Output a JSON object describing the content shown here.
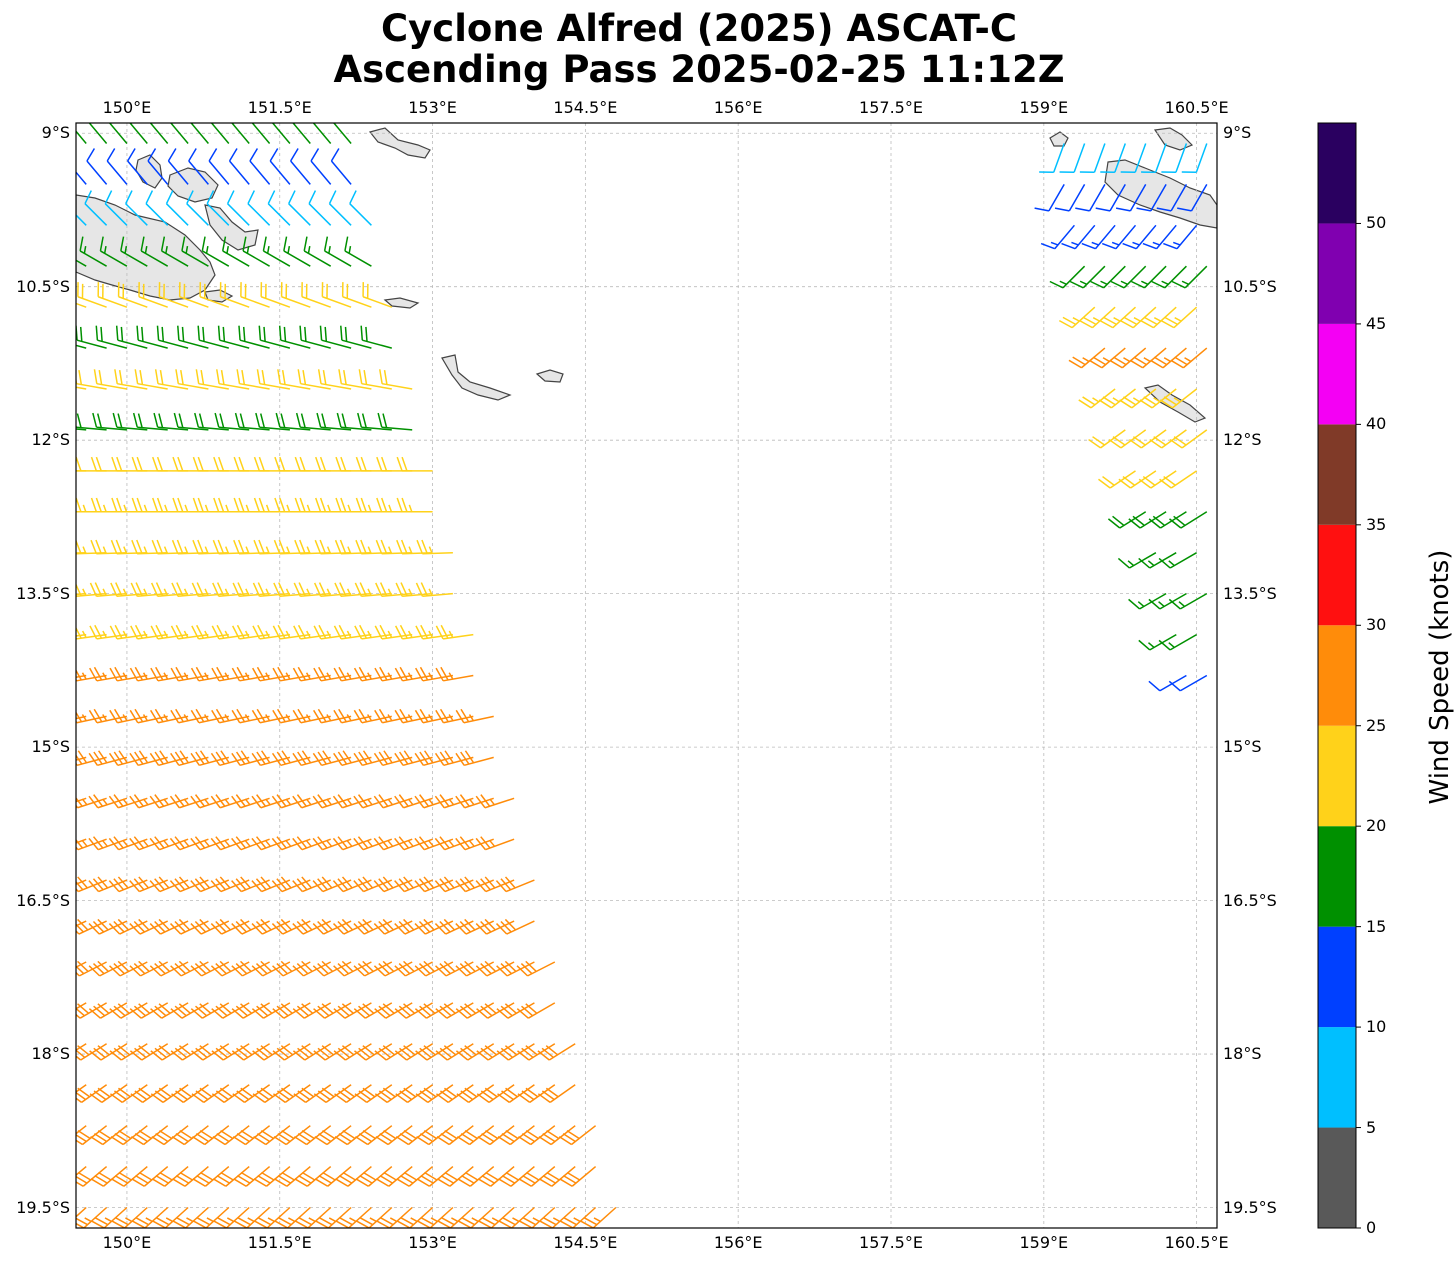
{
  "title": {
    "line1": "Cyclone Alfred (2025) ASCAT-C",
    "line2": "Ascending Pass 2025-02-25 11:12Z"
  },
  "map": {
    "lon_range": [
      149.5,
      160.7
    ],
    "lat_range": [
      -19.7,
      -8.9
    ],
    "lon_ticks": [
      150.0,
      151.5,
      153.0,
      154.5,
      156.0,
      157.5,
      159.0,
      160.5
    ],
    "lon_tick_labels": [
      "150°E",
      "151.5°E",
      "153°E",
      "154.5°E",
      "156°E",
      "157.5°E",
      "159°E",
      "160.5°E"
    ],
    "lat_ticks": [
      -9.0,
      -10.5,
      -12.0,
      -13.5,
      -15.0,
      -16.5,
      -18.0,
      -19.5
    ],
    "lat_tick_labels": [
      "9°S",
      "10.5°S",
      "12°S",
      "13.5°S",
      "15°S",
      "16.5°S",
      "18°S",
      "19.5°S"
    ],
    "grid": true,
    "land_color": "#f0f0f0",
    "coastline_color": "#444444",
    "barb_length_deg": 0.3
  },
  "colorbar": {
    "label": "Wind Speed (knots)",
    "ticks": [
      0,
      5,
      10,
      15,
      20,
      25,
      30,
      35,
      40,
      45,
      50
    ],
    "tick_labels": [
      "0",
      "5",
      "10",
      "15",
      "20",
      "25",
      "30",
      "35",
      "40",
      "45",
      "50"
    ],
    "bins": [
      {
        "min": 0,
        "max": 5,
        "color": "#595959"
      },
      {
        "min": 5,
        "max": 10,
        "color": "#00bfff"
      },
      {
        "min": 10,
        "max": 15,
        "color": "#0040ff"
      },
      {
        "min": 15,
        "max": 20,
        "color": "#009000"
      },
      {
        "min": 20,
        "max": 25,
        "color": "#ffd21a"
      },
      {
        "min": 25,
        "max": 30,
        "color": "#ff8c0a"
      },
      {
        "min": 30,
        "max": 35,
        "color": "#ff1010"
      },
      {
        "min": 35,
        "max": 40,
        "color": "#803a28"
      },
      {
        "min": 40,
        "max": 45,
        "color": "#f400f4"
      },
      {
        "min": 45,
        "max": 50,
        "color": "#8000b0"
      },
      {
        "min": 50,
        "max": 55,
        "color": "#2a0060"
      }
    ]
  },
  "wind_barbs": {
    "units": "knots",
    "swaths": [
      {
        "side": "west",
        "rows": [
          {
            "lat": -9.1,
            "lon_start": 149.6,
            "lon_end": 152.2,
            "direction_from_deg": 320,
            "speed_knots": 17
          },
          {
            "lat": -9.5,
            "lon_start": 149.6,
            "lon_end": 152.3,
            "direction_from_deg": 320,
            "speed_knots": 10
          },
          {
            "lat": -9.9,
            "lon_start": 149.6,
            "lon_end": 152.4,
            "direction_from_deg": 315,
            "speed_knots": 8
          },
          {
            "lat": -10.3,
            "lon_start": 149.6,
            "lon_end": 152.5,
            "direction_from_deg": 300,
            "speed_knots": 17
          },
          {
            "lat": -10.7,
            "lon_start": 149.6,
            "lon_end": 152.6,
            "direction_from_deg": 290,
            "speed_knots": 22
          },
          {
            "lat": -11.1,
            "lon_start": 149.6,
            "lon_end": 152.7,
            "direction_from_deg": 285,
            "speed_knots": 18
          },
          {
            "lat": -11.5,
            "lon_start": 149.6,
            "lon_end": 152.8,
            "direction_from_deg": 280,
            "speed_knots": 20
          },
          {
            "lat": -11.9,
            "lon_start": 149.6,
            "lon_end": 152.9,
            "direction_from_deg": 275,
            "speed_knots": 19
          },
          {
            "lat": -12.3,
            "lon_start": 149.6,
            "lon_end": 153.0,
            "direction_from_deg": 270,
            "speed_knots": 22
          },
          {
            "lat": -12.7,
            "lon_start": 149.6,
            "lon_end": 153.1,
            "direction_from_deg": 270,
            "speed_knots": 23
          },
          {
            "lat": -13.1,
            "lon_start": 149.6,
            "lon_end": 153.2,
            "direction_from_deg": 268,
            "speed_knots": 24
          },
          {
            "lat": -13.5,
            "lon_start": 149.6,
            "lon_end": 153.3,
            "direction_from_deg": 265,
            "speed_knots": 24
          },
          {
            "lat": -13.9,
            "lon_start": 149.6,
            "lon_end": 153.4,
            "direction_from_deg": 262,
            "speed_knots": 24
          },
          {
            "lat": -14.3,
            "lon_start": 149.6,
            "lon_end": 153.5,
            "direction_from_deg": 260,
            "speed_knots": 26
          },
          {
            "lat": -14.7,
            "lon_start": 149.6,
            "lon_end": 153.6,
            "direction_from_deg": 258,
            "speed_knots": 27
          },
          {
            "lat": -15.1,
            "lon_start": 149.6,
            "lon_end": 153.7,
            "direction_from_deg": 255,
            "speed_knots": 28
          },
          {
            "lat": -15.5,
            "lon_start": 149.6,
            "lon_end": 153.8,
            "direction_from_deg": 252,
            "speed_knots": 27
          },
          {
            "lat": -15.9,
            "lon_start": 149.6,
            "lon_end": 153.9,
            "direction_from_deg": 250,
            "speed_knots": 27
          },
          {
            "lat": -16.3,
            "lon_start": 149.6,
            "lon_end": 154.0,
            "direction_from_deg": 248,
            "speed_knots": 28
          },
          {
            "lat": -16.7,
            "lon_start": 149.6,
            "lon_end": 154.1,
            "direction_from_deg": 245,
            "speed_knots": 29
          },
          {
            "lat": -17.1,
            "lon_start": 149.6,
            "lon_end": 154.2,
            "direction_from_deg": 243,
            "speed_knots": 29
          },
          {
            "lat": -17.5,
            "lon_start": 149.6,
            "lon_end": 154.3,
            "direction_from_deg": 240,
            "speed_knots": 29
          },
          {
            "lat": -17.9,
            "lon_start": 149.6,
            "lon_end": 154.4,
            "direction_from_deg": 238,
            "speed_knots": 28
          },
          {
            "lat": -18.3,
            "lon_start": 149.6,
            "lon_end": 154.5,
            "direction_from_deg": 235,
            "speed_knots": 28
          },
          {
            "lat": -18.7,
            "lon_start": 149.6,
            "lon_end": 154.6,
            "direction_from_deg": 232,
            "speed_knots": 28
          },
          {
            "lat": -19.1,
            "lon_start": 149.6,
            "lon_end": 154.7,
            "direction_from_deg": 230,
            "speed_knots": 28
          },
          {
            "lat": -19.5,
            "lon_start": 149.6,
            "lon_end": 154.8,
            "direction_from_deg": 228,
            "speed_knots": 27
          }
        ]
      },
      {
        "side": "east",
        "rows": [
          {
            "lat": -9.1,
            "lon_start": 159.2,
            "lon_end": 160.6,
            "direction_from_deg": 200,
            "speed_knots": 8
          },
          {
            "lat": -9.5,
            "lon_start": 159.2,
            "lon_end": 160.6,
            "direction_from_deg": 210,
            "speed_knots": 12
          },
          {
            "lat": -9.9,
            "lon_start": 159.3,
            "lon_end": 160.6,
            "direction_from_deg": 220,
            "speed_knots": 13
          },
          {
            "lat": -10.3,
            "lon_start": 159.4,
            "lon_end": 160.6,
            "direction_from_deg": 225,
            "speed_knots": 17
          },
          {
            "lat": -10.7,
            "lon_start": 159.5,
            "lon_end": 160.6,
            "direction_from_deg": 228,
            "speed_knots": 23
          },
          {
            "lat": -11.1,
            "lon_start": 159.6,
            "lon_end": 160.6,
            "direction_from_deg": 230,
            "speed_knots": 25
          },
          {
            "lat": -11.5,
            "lon_start": 159.7,
            "lon_end": 160.6,
            "direction_from_deg": 232,
            "speed_knots": 24
          },
          {
            "lat": -11.9,
            "lon_start": 159.8,
            "lon_end": 160.6,
            "direction_from_deg": 234,
            "speed_knots": 22
          },
          {
            "lat": -12.3,
            "lon_start": 159.9,
            "lon_end": 160.6,
            "direction_from_deg": 236,
            "speed_knots": 22
          },
          {
            "lat": -12.7,
            "lon_start": 160.0,
            "lon_end": 160.6,
            "direction_from_deg": 238,
            "speed_knots": 18
          },
          {
            "lat": -13.1,
            "lon_start": 160.1,
            "lon_end": 160.6,
            "direction_from_deg": 240,
            "speed_knots": 17
          },
          {
            "lat": -13.5,
            "lon_start": 160.2,
            "lon_end": 160.6,
            "direction_from_deg": 240,
            "speed_knots": 17
          },
          {
            "lat": -13.9,
            "lon_start": 160.3,
            "lon_end": 160.6,
            "direction_from_deg": 240,
            "speed_knots": 16
          },
          {
            "lat": -14.3,
            "lon_start": 160.4,
            "lon_end": 160.6,
            "direction_from_deg": 240,
            "speed_knots": 12
          }
        ]
      }
    ]
  }
}
